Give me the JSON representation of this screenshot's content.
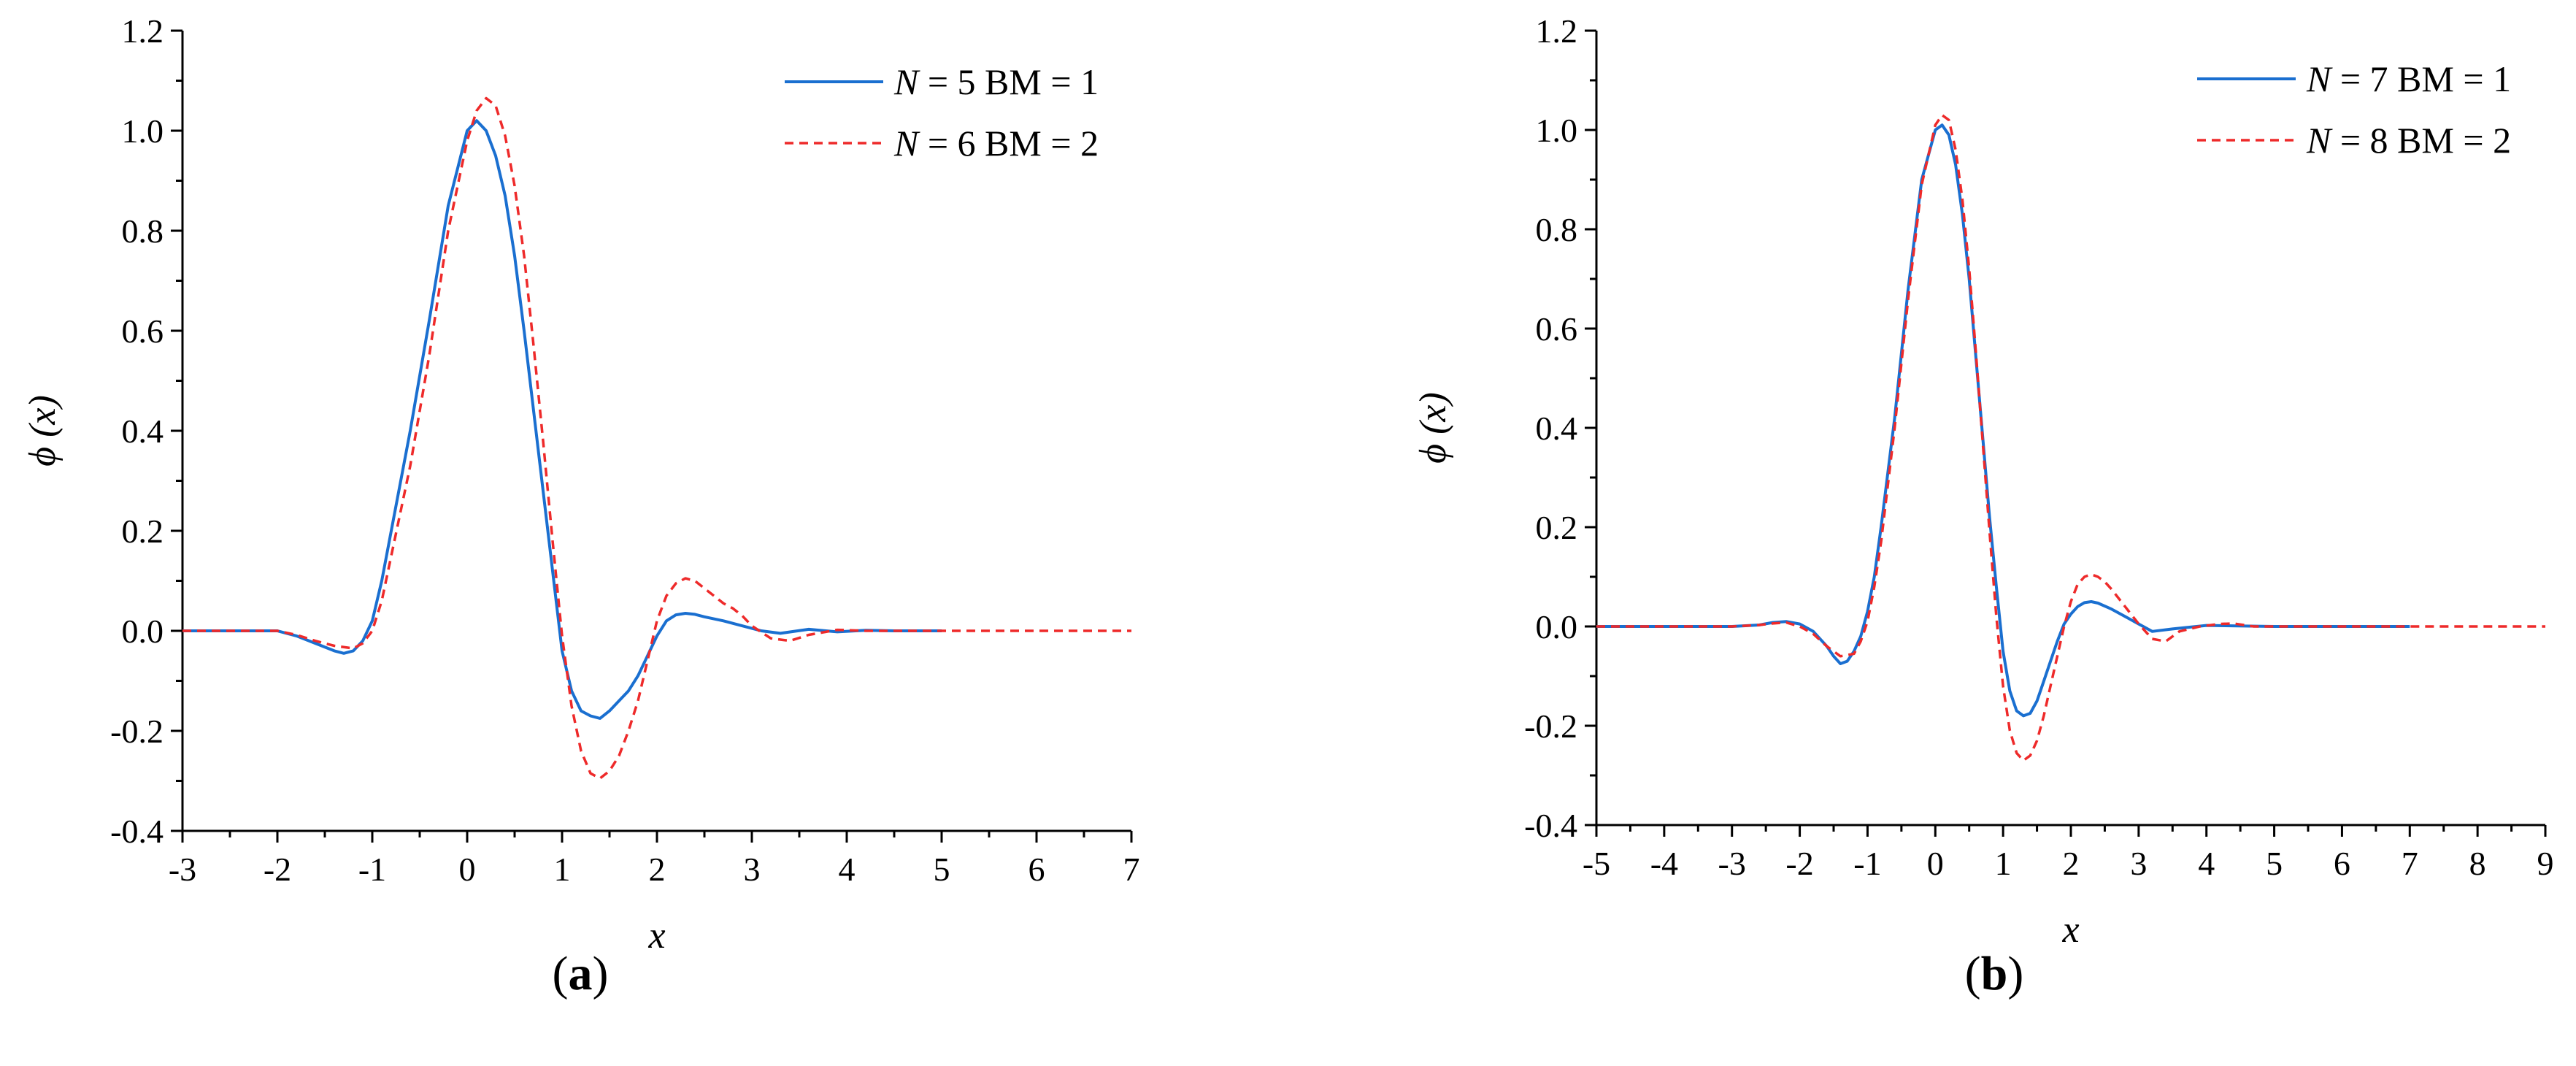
{
  "chart_data": [
    {
      "type": "line",
      "panel_label": "(a)",
      "xlabel": "x",
      "ylabel": "ϕ (x)",
      "xlim": [
        -3,
        7
      ],
      "ylim": [
        -0.4,
        1.2
      ],
      "xticks": [
        -3,
        -2,
        -1,
        0,
        1,
        2,
        3,
        4,
        5,
        6,
        7
      ],
      "yticks": [
        -0.4,
        -0.2,
        0.0,
        0.2,
        0.4,
        0.6,
        0.8,
        1.0,
        1.2
      ],
      "ytick_labels": [
        "-0.4",
        "-0.2",
        "0.0",
        "0.2",
        "0.4",
        "0.6",
        "0.8",
        "1.0",
        "1.2"
      ],
      "grid": false,
      "legend_position": "top-right",
      "series": [
        {
          "name": "N = 5 BM = 1",
          "legend_italic": "N",
          "legend_rest": " = 5 BM = 1",
          "color": "#1a6fd0",
          "style": "solid",
          "x": [
            -3,
            -2.5,
            -2.0,
            -1.8,
            -1.6,
            -1.4,
            -1.3,
            -1.2,
            -1.1,
            -1.0,
            -0.9,
            -0.8,
            -0.6,
            -0.4,
            -0.2,
            0.0,
            0.1,
            0.2,
            0.3,
            0.4,
            0.5,
            0.6,
            0.7,
            0.8,
            0.9,
            1.0,
            1.1,
            1.2,
            1.3,
            1.4,
            1.5,
            1.6,
            1.7,
            1.8,
            1.9,
            2.0,
            2.1,
            2.2,
            2.3,
            2.4,
            2.5,
            2.7,
            2.9,
            3.1,
            3.3,
            3.6,
            3.9,
            4.2,
            4.5,
            5.0
          ],
          "y": [
            0.0,
            0.0,
            0.0,
            -0.01,
            -0.025,
            -0.04,
            -0.045,
            -0.04,
            -0.02,
            0.02,
            0.1,
            0.2,
            0.4,
            0.62,
            0.85,
            1.0,
            1.02,
            1.0,
            0.95,
            0.87,
            0.75,
            0.6,
            0.44,
            0.28,
            0.12,
            -0.04,
            -0.12,
            -0.16,
            -0.17,
            -0.175,
            -0.16,
            -0.14,
            -0.12,
            -0.09,
            -0.05,
            -0.01,
            0.02,
            0.032,
            0.035,
            0.033,
            0.028,
            0.02,
            0.01,
            0.0,
            -0.005,
            0.003,
            -0.002,
            0.001,
            0.0,
            0.0
          ]
        },
        {
          "name": "N = 6 BM = 2",
          "legend_italic": "N",
          "legend_rest": " = 6 BM = 2",
          "color": "#ee2a2a",
          "style": "dashed",
          "x": [
            -3,
            -2.5,
            -2.0,
            -1.8,
            -1.6,
            -1.4,
            -1.2,
            -1.1,
            -1.0,
            -0.9,
            -0.8,
            -0.6,
            -0.4,
            -0.2,
            0.0,
            0.1,
            0.2,
            0.3,
            0.4,
            0.5,
            0.6,
            0.7,
            0.8,
            0.9,
            1.0,
            1.1,
            1.2,
            1.3,
            1.4,
            1.5,
            1.6,
            1.7,
            1.8,
            1.9,
            2.0,
            2.1,
            2.2,
            2.3,
            2.4,
            2.5,
            2.6,
            2.7,
            2.8,
            2.9,
            3.0,
            3.2,
            3.4,
            3.6,
            3.9,
            4.2,
            4.5,
            5.0,
            6.0,
            7.0
          ],
          "y": [
            0.0,
            0.0,
            0.0,
            -0.008,
            -0.02,
            -0.03,
            -0.035,
            -0.025,
            0.0,
            0.06,
            0.15,
            0.33,
            0.55,
            0.8,
            0.98,
            1.04,
            1.065,
            1.05,
            0.99,
            0.89,
            0.75,
            0.57,
            0.38,
            0.18,
            -0.01,
            -0.15,
            -0.24,
            -0.285,
            -0.295,
            -0.28,
            -0.25,
            -0.2,
            -0.14,
            -0.06,
            0.02,
            0.07,
            0.095,
            0.105,
            0.1,
            0.085,
            0.07,
            0.055,
            0.045,
            0.03,
            0.01,
            -0.015,
            -0.02,
            -0.008,
            0.002,
            0.0,
            0.0,
            0.0,
            0.0,
            0.0
          ]
        }
      ]
    },
    {
      "type": "line",
      "panel_label": "(b)",
      "xlabel": "x",
      "ylabel": "ϕ (x)",
      "xlim": [
        -5,
        9
      ],
      "ylim": [
        -0.4,
        1.2
      ],
      "xticks": [
        -5,
        -4,
        -3,
        -2,
        -1,
        0,
        1,
        2,
        3,
        4,
        5,
        6,
        7,
        8,
        9
      ],
      "yticks": [
        -0.4,
        -0.2,
        0.0,
        0.2,
        0.4,
        0.6,
        0.8,
        1.0,
        1.2
      ],
      "ytick_labels": [
        "-0.4",
        "-0.2",
        "0.0",
        "0.2",
        "0.4",
        "0.6",
        "0.8",
        "1.0",
        "1.2"
      ],
      "grid": false,
      "legend_position": "top-right",
      "series": [
        {
          "name": "N = 7 BM = 1",
          "legend_italic": "N",
          "legend_rest": " = 7 BM = 1",
          "color": "#1a6fd0",
          "style": "solid",
          "x": [
            -5,
            -4,
            -3,
            -2.6,
            -2.4,
            -2.2,
            -2.0,
            -1.8,
            -1.6,
            -1.5,
            -1.4,
            -1.3,
            -1.2,
            -1.1,
            -1.0,
            -0.9,
            -0.8,
            -0.6,
            -0.4,
            -0.2,
            0.0,
            0.1,
            0.2,
            0.3,
            0.4,
            0.5,
            0.6,
            0.7,
            0.8,
            0.9,
            1.0,
            1.1,
            1.2,
            1.3,
            1.4,
            1.5,
            1.6,
            1.7,
            1.8,
            1.9,
            2.0,
            2.1,
            2.2,
            2.3,
            2.4,
            2.6,
            2.8,
            3.0,
            3.2,
            3.5,
            4.0,
            5.0,
            6.0,
            7.0
          ],
          "y": [
            0.0,
            0.0,
            0.0,
            0.003,
            0.008,
            0.01,
            0.005,
            -0.01,
            -0.04,
            -0.06,
            -0.075,
            -0.07,
            -0.05,
            -0.02,
            0.03,
            0.1,
            0.2,
            0.42,
            0.68,
            0.9,
            1.0,
            1.01,
            0.99,
            0.93,
            0.83,
            0.7,
            0.54,
            0.38,
            0.22,
            0.08,
            -0.05,
            -0.13,
            -0.17,
            -0.18,
            -0.175,
            -0.15,
            -0.11,
            -0.07,
            -0.03,
            0.005,
            0.025,
            0.04,
            0.048,
            0.05,
            0.047,
            0.035,
            0.02,
            0.005,
            -0.01,
            -0.005,
            0.002,
            0.0,
            0.0,
            0.0
          ]
        },
        {
          "name": "N = 8 BM = 2",
          "legend_italic": "N",
          "legend_rest": " = 8 BM = 2",
          "color": "#ee2a2a",
          "style": "dashed",
          "x": [
            -5,
            -4,
            -3,
            -2.6,
            -2.4,
            -2.2,
            -2.0,
            -1.8,
            -1.6,
            -1.4,
            -1.2,
            -1.1,
            -1.0,
            -0.9,
            -0.8,
            -0.6,
            -0.4,
            -0.2,
            0.0,
            0.1,
            0.2,
            0.3,
            0.4,
            0.5,
            0.6,
            0.7,
            0.8,
            0.9,
            1.0,
            1.1,
            1.2,
            1.3,
            1.4,
            1.5,
            1.6,
            1.7,
            1.8,
            1.9,
            2.0,
            2.1,
            2.2,
            2.3,
            2.4,
            2.5,
            2.6,
            2.8,
            3.0,
            3.2,
            3.4,
            3.6,
            3.9,
            4.2,
            4.4,
            4.7,
            5.0,
            6.0,
            7.0,
            8.0,
            9.0
          ],
          "y": [
            0.0,
            0.0,
            0.0,
            0.003,
            0.006,
            0.008,
            0.0,
            -0.015,
            -0.04,
            -0.06,
            -0.055,
            -0.03,
            0.01,
            0.08,
            0.17,
            0.4,
            0.66,
            0.89,
            1.01,
            1.03,
            1.02,
            0.96,
            0.86,
            0.72,
            0.55,
            0.37,
            0.19,
            0.02,
            -0.12,
            -0.21,
            -0.255,
            -0.27,
            -0.26,
            -0.23,
            -0.18,
            -0.12,
            -0.06,
            0.0,
            0.05,
            0.085,
            0.1,
            0.105,
            0.1,
            0.09,
            0.075,
            0.04,
            0.005,
            -0.025,
            -0.03,
            -0.01,
            0.0,
            0.005,
            0.006,
            0.0,
            0.0,
            0.0,
            0.0,
            0.0,
            0.0
          ]
        }
      ]
    }
  ]
}
